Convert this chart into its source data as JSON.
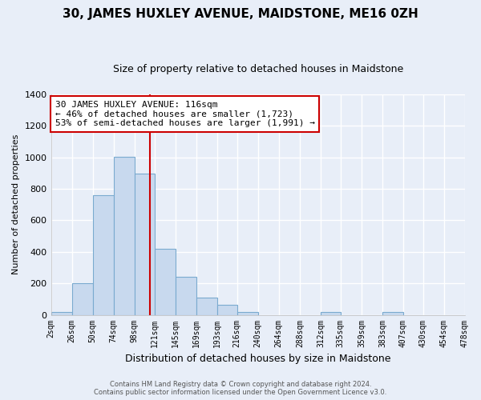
{
  "title": "30, JAMES HUXLEY AVENUE, MAIDSTONE, ME16 0ZH",
  "subtitle": "Size of property relative to detached houses in Maidstone",
  "xlabel": "Distribution of detached houses by size in Maidstone",
  "ylabel": "Number of detached properties",
  "bar_color": "#c8d9ee",
  "bar_edge_color": "#7aaacf",
  "bin_edges": [
    2,
    26,
    50,
    74,
    98,
    121,
    145,
    169,
    193,
    216,
    240,
    264,
    288,
    312,
    335,
    359,
    383,
    407,
    430,
    454,
    478
  ],
  "bar_heights": [
    18,
    200,
    760,
    1005,
    895,
    420,
    240,
    110,
    65,
    20,
    0,
    0,
    0,
    18,
    0,
    0,
    18,
    0,
    0,
    0
  ],
  "tick_labels": [
    "2sqm",
    "26sqm",
    "50sqm",
    "74sqm",
    "98sqm",
    "121sqm",
    "145sqm",
    "169sqm",
    "193sqm",
    "216sqm",
    "240sqm",
    "264sqm",
    "288sqm",
    "312sqm",
    "335sqm",
    "359sqm",
    "383sqm",
    "407sqm",
    "430sqm",
    "454sqm",
    "478sqm"
  ],
  "vline_x": 116,
  "vline_color": "#cc0000",
  "ylim": [
    0,
    1400
  ],
  "yticks": [
    0,
    200,
    400,
    600,
    800,
    1000,
    1200,
    1400
  ],
  "annotation_text": "30 JAMES HUXLEY AVENUE: 116sqm\n← 46% of detached houses are smaller (1,723)\n53% of semi-detached houses are larger (1,991) →",
  "annotation_box_color": "#ffffff",
  "annotation_box_edge": "#cc0000",
  "footer_line1": "Contains HM Land Registry data © Crown copyright and database right 2024.",
  "footer_line2": "Contains public sector information licensed under the Open Government Licence v3.0.",
  "background_color": "#e8eef8",
  "grid_color": "#ffffff",
  "title_fontsize": 11,
  "subtitle_fontsize": 9
}
